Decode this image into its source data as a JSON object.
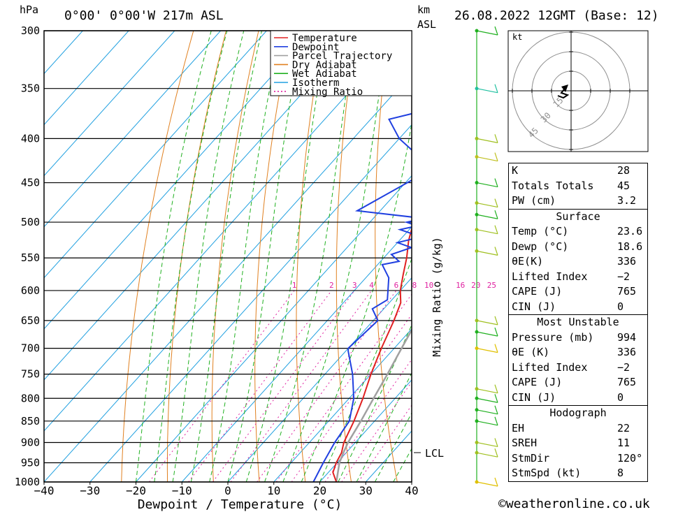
{
  "header": {
    "hpa_unit": "hPa",
    "location": "0°00' 0°00'W 217m ASL",
    "km_label": "km",
    "asl_label": "ASL",
    "datetime": "26.08.2022 12GMT (Base: 12)"
  },
  "chart_data": {
    "type": "line",
    "title": "",
    "xlabel": "Dewpoint / Temperature (°C)",
    "ylabel": "hPa",
    "y2label": "Mixing Ratio (g/kg)",
    "xlim": [
      -40,
      40
    ],
    "ylim": [
      1000,
      300
    ],
    "x_ticks": [
      "−40",
      "−30",
      "−20",
      "−10",
      "0",
      "10",
      "20",
      "30",
      "40"
    ],
    "pressure_levels": [
      300,
      350,
      400,
      450,
      500,
      550,
      600,
      650,
      700,
      750,
      800,
      850,
      900,
      950,
      1000
    ],
    "mixing_ratio_labels": [
      "1",
      "2",
      "3",
      "4",
      "6",
      "8",
      "10",
      "16",
      "20",
      "25"
    ],
    "lcl_label": "LCL",
    "lcl_pressure": 925,
    "legend": [
      "Temperature",
      "Dewpoint",
      "Parcel Trajectory",
      "Dry Adiabat",
      "Wet Adiabat",
      "Isotherm",
      "Mixing Ratio"
    ],
    "legend_position": "top-right",
    "colors": {
      "temperature": "#e02020",
      "dewpoint": "#2040e0",
      "parcel": "#a0a0a0",
      "dry_adiabat": "#e08020",
      "wet_adiabat": "#20b020",
      "isotherm": "#20a0e0",
      "mixing_ratio": "#e020a0"
    },
    "series": [
      {
        "name": "Temperature",
        "points": [
          [
            23.6,
            1000
          ],
          [
            21,
            975
          ],
          [
            19.8,
            950
          ],
          [
            19,
            925
          ],
          [
            17.5,
            900
          ],
          [
            15.5,
            850
          ],
          [
            13,
            800
          ],
          [
            10,
            750
          ],
          [
            7.2,
            700
          ],
          [
            4.5,
            650
          ],
          [
            2.5,
            620
          ],
          [
            0,
            600
          ],
          [
            -2.5,
            575
          ],
          [
            -5,
            550
          ],
          [
            -8,
            525
          ],
          [
            -10.5,
            500
          ],
          [
            -11.5,
            490
          ],
          [
            -13.5,
            475
          ],
          [
            -17,
            450
          ],
          [
            -21,
            425
          ],
          [
            -23.5,
            415
          ],
          [
            -26,
            400
          ],
          [
            -30,
            375
          ],
          [
            -34,
            360
          ],
          [
            -36.5,
            350
          ],
          [
            -40,
            330
          ],
          [
            -44,
            300
          ]
        ]
      },
      {
        "name": "Dewpoint",
        "points": [
          [
            18.6,
            1000
          ],
          [
            17,
            950
          ],
          [
            15.5,
            900
          ],
          [
            14.5,
            850
          ],
          [
            11,
            800
          ],
          [
            6,
            750
          ],
          [
            0.5,
            705
          ],
          [
            0,
            700
          ],
          [
            0.2,
            690
          ],
          [
            1,
            650
          ],
          [
            -2.5,
            630
          ],
          [
            -1,
            615
          ],
          [
            -5,
            580
          ],
          [
            -9,
            560
          ],
          [
            -6,
            555
          ],
          [
            -9,
            545
          ],
          [
            -6,
            535
          ],
          [
            -10,
            528
          ],
          [
            -6,
            520
          ],
          [
            -12,
            510
          ],
          [
            -9,
            505
          ],
          [
            -12,
            500
          ],
          [
            -9,
            495
          ],
          [
            -25,
            485
          ],
          [
            -18,
            440
          ],
          [
            -17,
            422
          ],
          [
            -13,
            420
          ],
          [
            -17,
            418
          ],
          [
            -24,
            415
          ],
          [
            -30,
            400
          ],
          [
            -36,
            380
          ],
          [
            -22,
            360
          ],
          [
            -33,
            345
          ],
          [
            -33,
            330
          ],
          [
            -32,
            300
          ]
        ]
      },
      {
        "name": "Parcel Trajectory",
        "points": [
          [
            23.6,
            1000
          ],
          [
            20.5,
            950
          ],
          [
            19.4,
            925
          ],
          [
            18.4,
            900
          ],
          [
            17,
            850
          ],
          [
            15.3,
            800
          ],
          [
            13.6,
            750
          ],
          [
            11.6,
            700
          ],
          [
            9.5,
            650
          ],
          [
            7,
            600
          ],
          [
            4.2,
            550
          ],
          [
            1,
            500
          ],
          [
            -2.7,
            450
          ],
          [
            -7.2,
            400
          ],
          [
            -12.5,
            350
          ],
          [
            -19,
            300
          ]
        ]
      }
    ]
  },
  "hodograph": {
    "unit": "kt",
    "ring_labels": [
      "15",
      "30",
      "45"
    ]
  },
  "indices": {
    "k_label": "K",
    "k_value": "28",
    "tt_label": "Totals Totals",
    "tt_value": "45",
    "pw_label": "PW (cm)",
    "pw_value": "3.2",
    "surface_title": "Surface",
    "s_temp_label": "Temp (°C)",
    "s_temp_value": "23.6",
    "s_dewp_label": "Dewp (°C)",
    "s_dewp_value": "18.6",
    "s_thetae_label": "θE(K)",
    "s_thetae_value": "336",
    "s_li_label": "Lifted Index",
    "s_li_value": "−2",
    "s_cape_label": "CAPE (J)",
    "s_cape_value": "765",
    "s_cin_label": "CIN (J)",
    "s_cin_value": "0",
    "mu_title": "Most Unstable",
    "mu_pressure_label": "Pressure (mb)",
    "mu_pressure_value": "994",
    "mu_thetae_label": "θE (K)",
    "mu_thetae_value": "336",
    "mu_li_label": "Lifted Index",
    "mu_li_value": "−2",
    "mu_cape_label": "CAPE (J)",
    "mu_cape_value": "765",
    "mu_cin_label": "CIN (J)",
    "mu_cin_value": "0",
    "hodo_title": "Hodograph",
    "eh_label": "EH",
    "eh_value": "22",
    "sreh_label": "SREH",
    "sreh_value": "11",
    "stmdir_label": "StmDir",
    "stmdir_value": "120°",
    "stmspd_label": "StmSpd (kt)",
    "stmspd_value": "8"
  },
  "footer": {
    "credit": "©weatheronline.co.uk"
  }
}
